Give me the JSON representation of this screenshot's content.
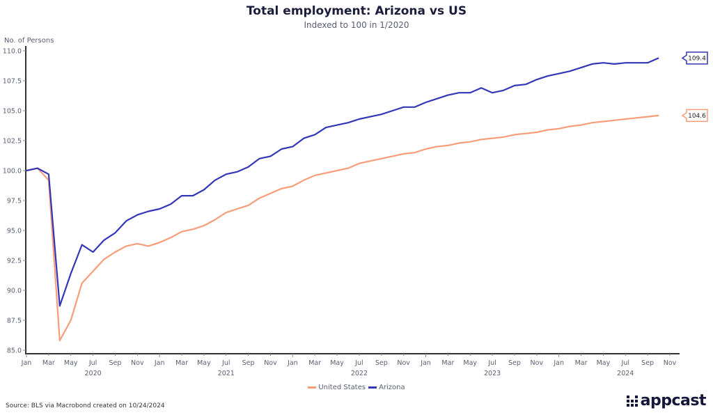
{
  "header": {
    "title": "Total employment: Arizona vs US",
    "subtitle": "Indexed to 100 in 1/2020"
  },
  "footer": {
    "source": "Source: BLS via Macrobond created on 10/24/2024",
    "logo_text": "appcast"
  },
  "colors": {
    "united_states": "#f79d7a",
    "arizona": "#3336b5",
    "axis": "#333333",
    "text": "#5a5c70"
  },
  "chart_data": {
    "type": "line",
    "title": "Total employment: Arizona vs US",
    "subtitle": "Indexed to 100 in 1/2020",
    "xlabel": "",
    "ylabel": "No. of Persons",
    "ylim": [
      85.0,
      110.0
    ],
    "yticks": [
      "85.0",
      "87.5",
      "90.0",
      "92.5",
      "95.0",
      "97.5",
      "100.0",
      "102.5",
      "105.0",
      "107.5",
      "110.0"
    ],
    "xrange": [
      "2020-01",
      "2024-11"
    ],
    "xtick_labels": [
      "Jan",
      "Mar",
      "May",
      "Jul",
      "Sep",
      "Nov",
      "Jan",
      "Mar",
      "May",
      "Jul",
      "Sep",
      "Nov",
      "Jan",
      "Mar",
      "May",
      "Jul",
      "Sep",
      "Nov",
      "Jan",
      "Mar",
      "May",
      "Jul",
      "Sep",
      "Nov",
      "Jan",
      "Mar",
      "May",
      "Jul",
      "Sep",
      "Nov"
    ],
    "year_labels": [
      "2020",
      "2021",
      "2022",
      "2023",
      "2024"
    ],
    "grid": false,
    "legend": "bottom-center",
    "x": [
      "2020-01",
      "2020-02",
      "2020-03",
      "2020-04",
      "2020-05",
      "2020-06",
      "2020-07",
      "2020-08",
      "2020-09",
      "2020-10",
      "2020-11",
      "2020-12",
      "2021-01",
      "2021-02",
      "2021-03",
      "2021-04",
      "2021-05",
      "2021-06",
      "2021-07",
      "2021-08",
      "2021-09",
      "2021-10",
      "2021-11",
      "2021-12",
      "2022-01",
      "2022-02",
      "2022-03",
      "2022-04",
      "2022-05",
      "2022-06",
      "2022-07",
      "2022-08",
      "2022-09",
      "2022-10",
      "2022-11",
      "2022-12",
      "2023-01",
      "2023-02",
      "2023-03",
      "2023-04",
      "2023-05",
      "2023-06",
      "2023-07",
      "2023-08",
      "2023-09",
      "2023-10",
      "2023-11",
      "2023-12",
      "2024-01",
      "2024-02",
      "2024-03",
      "2024-04",
      "2024-05",
      "2024-06",
      "2024-07",
      "2024-08",
      "2024-09",
      "2024-10"
    ],
    "series": [
      {
        "name": "United States",
        "color": "#f79d7a",
        "end_label": "104.6",
        "values": [
          100.0,
          100.2,
          99.2,
          85.8,
          87.5,
          90.6,
          91.6,
          92.6,
          93.2,
          93.7,
          93.9,
          93.7,
          94.0,
          94.4,
          94.9,
          95.1,
          95.4,
          95.9,
          96.5,
          96.8,
          97.1,
          97.7,
          98.1,
          98.5,
          98.7,
          99.2,
          99.6,
          99.8,
          100.0,
          100.2,
          100.6,
          100.8,
          101.0,
          101.2,
          101.4,
          101.5,
          101.8,
          102.0,
          102.1,
          102.3,
          102.4,
          102.6,
          102.7,
          102.8,
          103.0,
          103.1,
          103.2,
          103.4,
          103.5,
          103.7,
          103.8,
          104.0,
          104.1,
          104.2,
          104.3,
          104.4,
          104.5,
          104.6
        ]
      },
      {
        "name": "Arizona",
        "color": "#3336b5",
        "end_label": "109.4",
        "values": [
          100.0,
          100.2,
          99.7,
          88.7,
          91.4,
          93.8,
          93.2,
          94.2,
          94.8,
          95.8,
          96.3,
          96.6,
          96.8,
          97.2,
          97.9,
          97.9,
          98.4,
          99.2,
          99.7,
          99.9,
          100.3,
          101.0,
          101.2,
          101.8,
          102.0,
          102.7,
          103.0,
          103.6,
          103.8,
          104.0,
          104.3,
          104.5,
          104.7,
          105.0,
          105.3,
          105.3,
          105.7,
          106.0,
          106.3,
          106.5,
          106.5,
          106.9,
          106.5,
          106.7,
          107.1,
          107.2,
          107.6,
          107.9,
          108.1,
          108.3,
          108.6,
          108.9,
          109.0,
          108.9,
          109.0,
          109.0,
          109.0,
          109.4
        ]
      }
    ]
  }
}
